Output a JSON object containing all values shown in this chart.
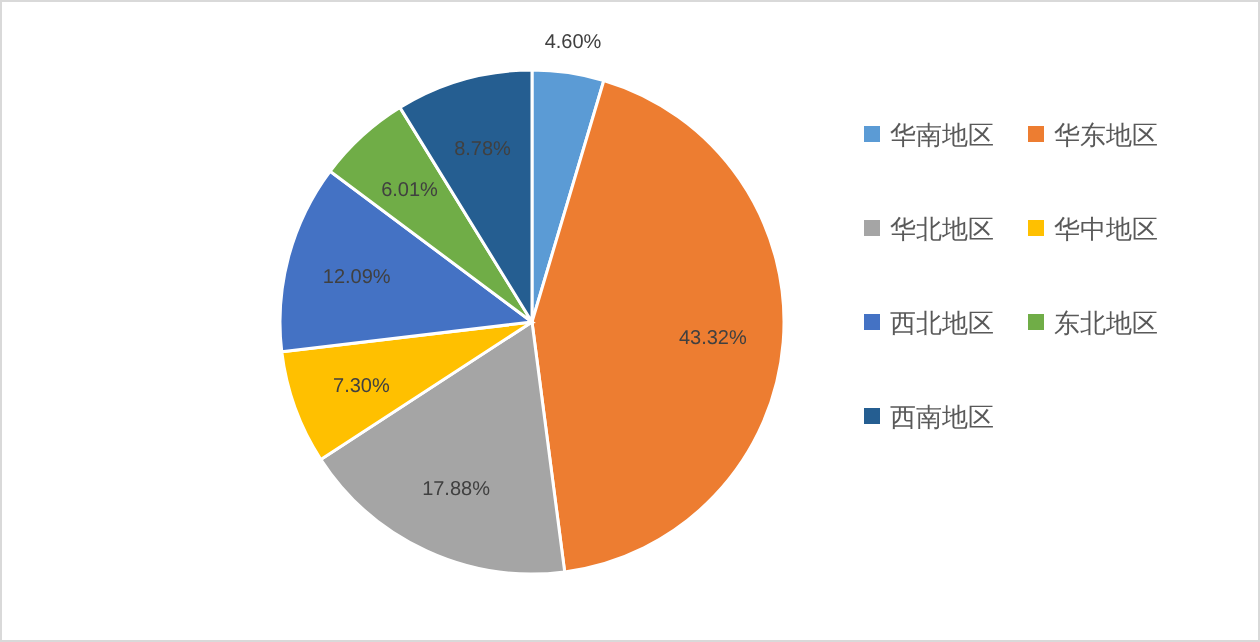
{
  "chart_data": {
    "type": "pie",
    "categories": [
      "华南地区",
      "华东地区",
      "华北地区",
      "华中地区",
      "西北地区",
      "东北地区",
      "西南地区"
    ],
    "values": [
      4.6,
      43.32,
      17.88,
      7.3,
      12.09,
      6.01,
      8.78
    ],
    "value_labels": [
      "4.60%",
      "43.32%",
      "17.88%",
      "7.30%",
      "12.09%",
      "6.01%",
      "8.78%"
    ],
    "colors": [
      "#5b9bd5",
      "#ed7d31",
      "#a5a5a5",
      "#ffc000",
      "#4472c4",
      "#70ad47",
      "#255e91"
    ],
    "legend": "right"
  }
}
